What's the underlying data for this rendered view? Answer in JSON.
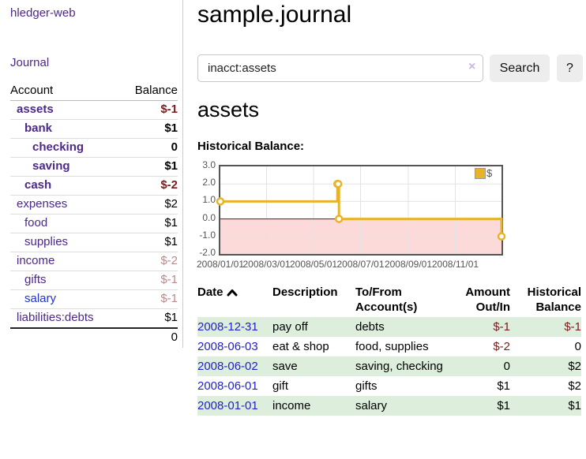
{
  "sidebar": {
    "brand": "hledger-web",
    "journal_label": "Journal",
    "accounts": {
      "header_account": "Account",
      "header_balance": "Balance",
      "rows": [
        {
          "account": "assets",
          "balance": "$-1"
        },
        {
          "account": "bank",
          "balance": "$1"
        },
        {
          "account": "checking",
          "balance": "0"
        },
        {
          "account": "saving",
          "balance": "$1"
        },
        {
          "account": "cash",
          "balance": "$-2"
        },
        {
          "account": "expenses",
          "balance": "$2"
        },
        {
          "account": "food",
          "balance": "$1"
        },
        {
          "account": "supplies",
          "balance": "$1"
        },
        {
          "account": "income",
          "balance": "$-2"
        },
        {
          "account": "gifts",
          "balance": "$-1"
        },
        {
          "account": "salary",
          "balance": "$-1"
        },
        {
          "account": "liabilities:debts",
          "balance": "$1"
        }
      ],
      "total": "0"
    }
  },
  "main": {
    "title": "sample.journal",
    "search": {
      "value": "inacct:assets",
      "clear": "×",
      "button": "Search",
      "help": "?"
    },
    "account_title": "assets",
    "chart_heading": "Historical Balance:"
  },
  "chart_data": {
    "type": "line",
    "step": true,
    "title": "Historical Balance",
    "legend": "$",
    "legend_position": "top-right",
    "series": [
      {
        "name": "$",
        "color": "#e6b32a",
        "points": [
          [
            "2008-01-01",
            1
          ],
          [
            "2008-06-01",
            2
          ],
          [
            "2008-06-02",
            2
          ],
          [
            "2008-06-03",
            0
          ],
          [
            "2008-12-31",
            -1
          ]
        ]
      }
    ],
    "x_range": [
      "2008-01-01",
      "2008-12-31"
    ],
    "ylim": [
      -2,
      3
    ],
    "yticks": [
      "3.0",
      "2.0",
      "1.0",
      "0.0",
      "-1.0",
      "-2.0"
    ],
    "xticks": [
      "2008/01/01",
      "2008/03/01",
      "2008/05/01",
      "2008/07/01",
      "2008/09/01",
      "2008/11/01"
    ],
    "grid": true,
    "negative_fill": "#fcdada",
    "zero_line_color": "#990000",
    "grid_color": "#e3e3e3",
    "frame_color": "#555555"
  },
  "register": {
    "headers": {
      "date": "Date",
      "description": "Description",
      "accounts": "To/From Account(s)",
      "amount": "Amount Out/In",
      "balance": "Historical Balance"
    },
    "rows": [
      {
        "date": "2008-12-31",
        "description": "pay off",
        "accounts": "debts",
        "amount": "$-1",
        "balance": "$-1"
      },
      {
        "date": "2008-06-03",
        "description": "eat & shop",
        "accounts": "food, supplies",
        "amount": "$-2",
        "balance": "0"
      },
      {
        "date": "2008-06-02",
        "description": "save",
        "accounts": "saving, checking",
        "amount": "0",
        "balance": "$2"
      },
      {
        "date": "2008-06-01",
        "description": "gift",
        "accounts": "gifts",
        "amount": "$1",
        "balance": "$2"
      },
      {
        "date": "2008-01-01",
        "description": "income",
        "accounts": "salary",
        "amount": "$1",
        "balance": "$1"
      }
    ]
  }
}
